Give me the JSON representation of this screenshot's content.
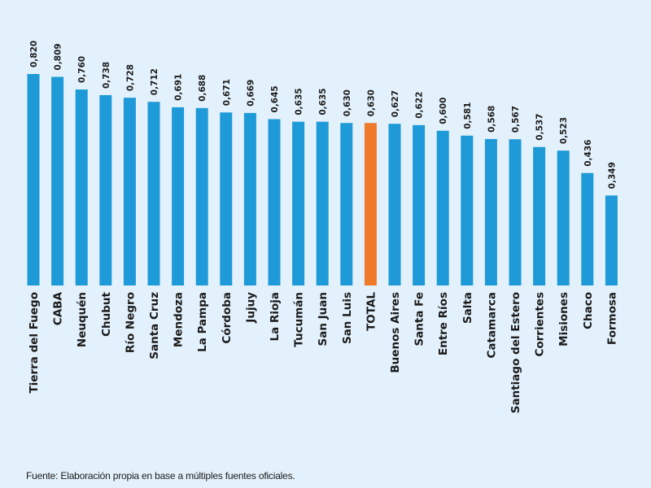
{
  "chart_data": {
    "type": "bar",
    "categories": [
      "Tierra del Fuego",
      "CABA",
      "Neuquén",
      "Chubut",
      "Río Negro",
      "Santa Cruz",
      "Mendoza",
      "La Pampa",
      "Córdoba",
      "Jujuy",
      "La Rioja",
      "Tucumán",
      "San Juan",
      "San Luis",
      "TOTAL",
      "Buenos Aires",
      "Santa Fe",
      "Entre Ríos",
      "Salta",
      "Catamarca",
      "Santiago del Estero",
      "Corrientes",
      "Misiones",
      "Chaco",
      "Formosa"
    ],
    "values": [
      0.82,
      0.809,
      0.76,
      0.738,
      0.728,
      0.712,
      0.691,
      0.688,
      0.671,
      0.669,
      0.645,
      0.635,
      0.635,
      0.63,
      0.63,
      0.627,
      0.622,
      0.6,
      0.581,
      0.568,
      0.567,
      0.537,
      0.523,
      0.436,
      0.349
    ],
    "value_labels": [
      "0,820",
      "0,809",
      "0,760",
      "0,738",
      "0,728",
      "0,712",
      "0,691",
      "0,688",
      "0,671",
      "0,669",
      "0,645",
      "0,635",
      "0,635",
      "0,630",
      "0,630",
      "0,627",
      "0,622",
      "0,600",
      "0,581",
      "0,568",
      "0,567",
      "0,537",
      "0,523",
      "0,436",
      "0,349"
    ],
    "highlight_index": 14,
    "ylim": [
      0,
      0.82
    ],
    "grid": false,
    "colors": {
      "bar": "#1e9ad8",
      "highlight": "#ef7a2c",
      "highlight_text": "#ef7a2c",
      "text": "#1a1a1a",
      "background": "#e3f1fc"
    }
  },
  "source": "Fuente: Elaboración propia en base a múltiples fuentes oficiales."
}
